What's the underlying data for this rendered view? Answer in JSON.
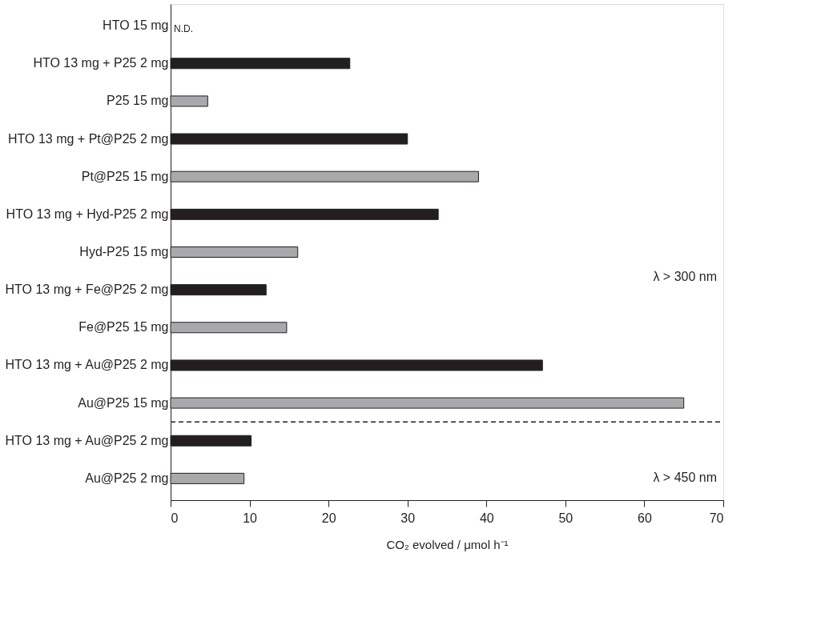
{
  "chart_data": {
    "type": "bar",
    "orientation": "horizontal",
    "categories": [
      "HTO 15 mg",
      "HTO 13 mg + P25 2 mg",
      "P25 15 mg",
      "HTO 13 mg + Pt@P25 2 mg",
      "Pt@P25 15 mg",
      "HTO 13 mg + Hyd-P25 2 mg",
      "Hyd-P25 15 mg",
      "HTO 13 mg + Fe@P25 2 mg",
      "Fe@P25 15 mg",
      "HTO 13 mg + Au@P25 2 mg",
      "Au@P25 15 mg",
      "HTO 13 mg + Au@P25 2 mg",
      "Au@P25 2 mg"
    ],
    "values": [
      null,
      22.7,
      4.7,
      30.0,
      39.0,
      33.9,
      16.1,
      12.1,
      14.7,
      47.1,
      65.0,
      10.2,
      9.3
    ],
    "colors": [
      "#231f20",
      "#231f20",
      "#a7a9ac",
      "#231f20",
      "#a7a9ac",
      "#231f20",
      "#a7a9ac",
      "#231f20",
      "#a7a9ac",
      "#231f20",
      "#a7a9ac",
      "#231f20",
      "#a7a9ac"
    ],
    "xlim": [
      0,
      70
    ],
    "xticks": [
      0,
      10,
      20,
      30,
      40,
      50,
      60,
      70
    ],
    "xlabel": "CO₂ evolved / μmol h⁻¹",
    "grid": false,
    "annotations": [
      "N.D.",
      "λ > 300 nm",
      "λ > 450 nm"
    ]
  }
}
